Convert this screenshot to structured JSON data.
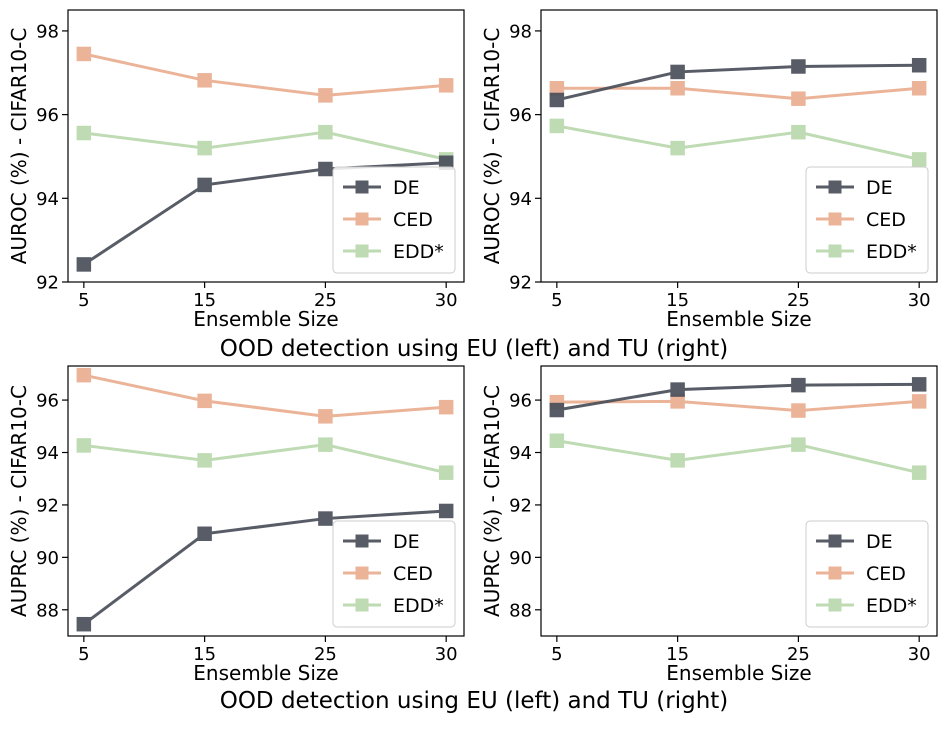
{
  "colors": {
    "DE": "#4a4f5a",
    "CED": "#e8a888",
    "EDD*": "#a9d09a"
  },
  "captions": [
    "OOD detection using EU (left) and TU (right)",
    "OOD detection using EU (left) and TU (right)"
  ],
  "chart_data": [
    {
      "type": "line",
      "xlabel": "Ensemble Size",
      "ylabel": "AUROC (%) - CIFAR10-C",
      "categories": [
        "5",
        "15",
        "25",
        "30"
      ],
      "yticks": [
        92,
        94,
        96,
        98
      ],
      "ylim": [
        92,
        98.5
      ],
      "legend": "bottom-right",
      "series": [
        {
          "name": "DE",
          "values": [
            92.42,
            94.32,
            94.7,
            94.85
          ]
        },
        {
          "name": "CED",
          "values": [
            97.45,
            96.82,
            96.46,
            96.7
          ]
        },
        {
          "name": "EDD*",
          "values": [
            95.56,
            95.2,
            95.58,
            94.93
          ]
        }
      ]
    },
    {
      "type": "line",
      "xlabel": "Ensemble Size",
      "ylabel": "AUROC (%) - CIFAR10-C",
      "categories": [
        "5",
        "15",
        "25",
        "30"
      ],
      "yticks": [
        92,
        94,
        96,
        98
      ],
      "ylim": [
        92,
        98.5
      ],
      "legend": "bottom-right",
      "series": [
        {
          "name": "DE",
          "values": [
            96.35,
            97.02,
            97.15,
            97.18
          ]
        },
        {
          "name": "CED",
          "values": [
            96.63,
            96.63,
            96.38,
            96.63
          ]
        },
        {
          "name": "EDD*",
          "values": [
            95.73,
            95.2,
            95.58,
            94.93
          ]
        }
      ]
    },
    {
      "type": "line",
      "xlabel": "Ensemble Size",
      "ylabel": "AUPRC (%) - CIFAR10-C",
      "categories": [
        "5",
        "15",
        "25",
        "30"
      ],
      "yticks": [
        88,
        90,
        92,
        94,
        96
      ],
      "ylim": [
        87,
        97.3
      ],
      "legend": "bottom-right",
      "series": [
        {
          "name": "DE",
          "values": [
            87.45,
            90.9,
            91.48,
            91.77
          ]
        },
        {
          "name": "CED",
          "values": [
            96.95,
            95.97,
            95.38,
            95.73
          ]
        },
        {
          "name": "EDD*",
          "values": [
            94.27,
            93.7,
            94.3,
            93.23
          ]
        }
      ]
    },
    {
      "type": "line",
      "xlabel": "Ensemble Size",
      "ylabel": "AUPRC (%) - CIFAR10-C",
      "categories": [
        "5",
        "15",
        "25",
        "30"
      ],
      "yticks": [
        88,
        90,
        92,
        94,
        96
      ],
      "ylim": [
        87,
        97.3
      ],
      "legend": "bottom-right",
      "series": [
        {
          "name": "DE",
          "values": [
            95.62,
            96.4,
            96.57,
            96.6
          ]
        },
        {
          "name": "CED",
          "values": [
            95.92,
            95.95,
            95.6,
            95.95
          ]
        },
        {
          "name": "EDD*",
          "values": [
            94.45,
            93.7,
            94.3,
            93.23
          ]
        }
      ]
    }
  ]
}
